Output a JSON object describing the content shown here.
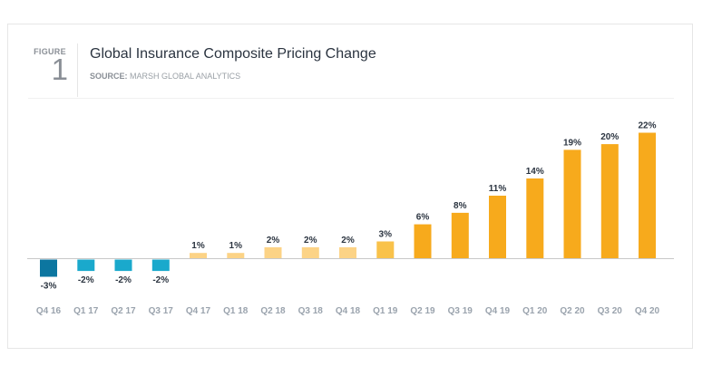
{
  "figure": {
    "label": "FIGURE",
    "number": "1",
    "title": "Global Insurance Composite Pricing Change",
    "source_prefix": "SOURCE:",
    "source_text": "MARSH GLOBAL ANALYTICS"
  },
  "chart_data": {
    "type": "bar",
    "title": "Global Insurance Composite Pricing Change",
    "subtitle": "SOURCE: MARSH GLOBAL ANALYTICS",
    "xlabel": "",
    "ylabel": "",
    "ylim": [
      -3,
      22
    ],
    "grid": false,
    "legend": null,
    "categories": [
      "Q4 16",
      "Q1 17",
      "Q2 17",
      "Q3 17",
      "Q4 17",
      "Q1 18",
      "Q2 18",
      "Q3 18",
      "Q4 18",
      "Q1 19",
      "Q2 19",
      "Q3 19",
      "Q4 19",
      "Q1 20",
      "Q2 20",
      "Q3 20",
      "Q4 20"
    ],
    "values": [
      -3,
      -2,
      -2,
      -2,
      1,
      1,
      2,
      2,
      2,
      3,
      6,
      8,
      11,
      14,
      19,
      20,
      22
    ],
    "data_labels": [
      "-3%",
      "-2%",
      "-2%",
      "-2%",
      "1%",
      "1%",
      "2%",
      "2%",
      "2%",
      "3%",
      "6%",
      "8%",
      "11%",
      "14%",
      "19%",
      "20%",
      "22%"
    ],
    "bar_colors": [
      "#0c76a0",
      "#1aa9cc",
      "#1aa9cc",
      "#1aa9cc",
      "#fcd386",
      "#fcd386",
      "#fcd386",
      "#fcd386",
      "#fcd386",
      "#f9c24a",
      "#f7aa1c",
      "#f7aa1c",
      "#f7aa1c",
      "#f7aa1c",
      "#f7aa1c",
      "#f7aa1c",
      "#f7aa1c"
    ],
    "axis_color": "#c8c8c8"
  }
}
